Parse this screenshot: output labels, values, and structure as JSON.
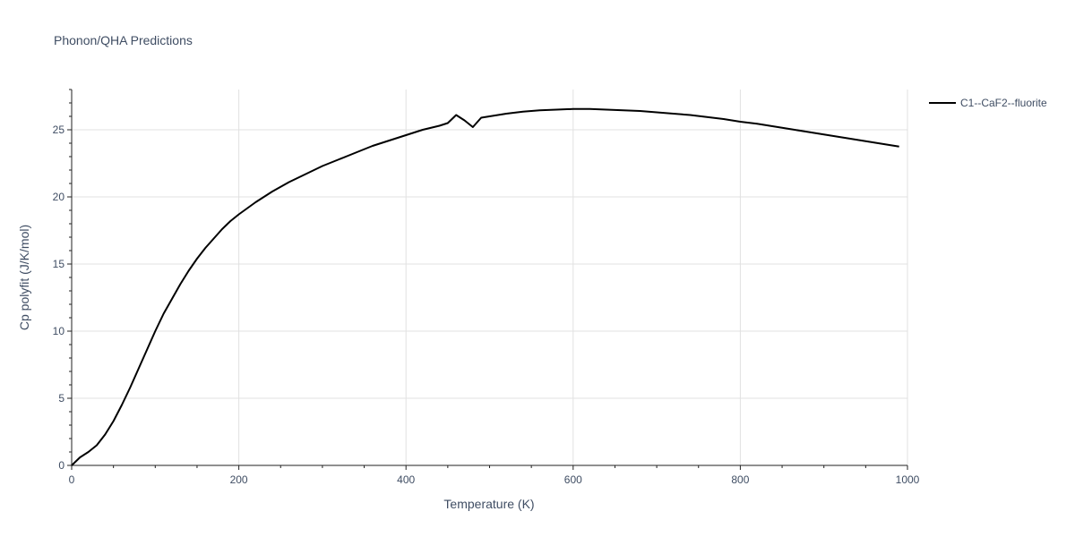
{
  "chart_data": {
    "type": "line",
    "title": "Phonon/QHA Predictions",
    "xlabel": "Temperature (K)",
    "ylabel": "Cp polyfit (J/K/mol)",
    "xlim": [
      0,
      1000
    ],
    "ylim": [
      0,
      28
    ],
    "xticks": [
      0,
      200,
      400,
      600,
      800,
      1000
    ],
    "yticks": [
      0,
      5,
      10,
      15,
      20,
      25
    ],
    "grid": true,
    "legend_position": "top-right",
    "series": [
      {
        "name": "C1--CaF2--fluorite",
        "color": "#000000",
        "x": [
          0,
          10,
          20,
          30,
          40,
          50,
          60,
          70,
          80,
          90,
          100,
          110,
          120,
          130,
          140,
          150,
          160,
          170,
          180,
          190,
          200,
          220,
          240,
          260,
          280,
          300,
          320,
          340,
          360,
          380,
          400,
          420,
          440,
          450,
          460,
          470,
          480,
          490,
          500,
          520,
          540,
          560,
          580,
          600,
          620,
          640,
          660,
          680,
          700,
          720,
          740,
          760,
          780,
          800,
          820,
          840,
          860,
          880,
          900,
          920,
          940,
          960,
          980,
          990
        ],
        "y": [
          0,
          0.6,
          1.0,
          1.5,
          2.3,
          3.3,
          4.5,
          5.8,
          7.2,
          8.6,
          10.0,
          11.3,
          12.4,
          13.5,
          14.5,
          15.4,
          16.2,
          16.9,
          17.6,
          18.2,
          18.7,
          19.6,
          20.4,
          21.1,
          21.7,
          22.3,
          22.8,
          23.3,
          23.8,
          24.2,
          24.6,
          25.0,
          25.3,
          25.5,
          26.1,
          25.7,
          25.2,
          25.9,
          26.0,
          26.2,
          26.35,
          26.45,
          26.5,
          26.55,
          26.55,
          26.5,
          26.45,
          26.4,
          26.3,
          26.2,
          26.1,
          25.95,
          25.8,
          25.6,
          25.45,
          25.25,
          25.05,
          24.85,
          24.65,
          24.45,
          24.25,
          24.05,
          23.85,
          23.75
        ]
      }
    ]
  }
}
